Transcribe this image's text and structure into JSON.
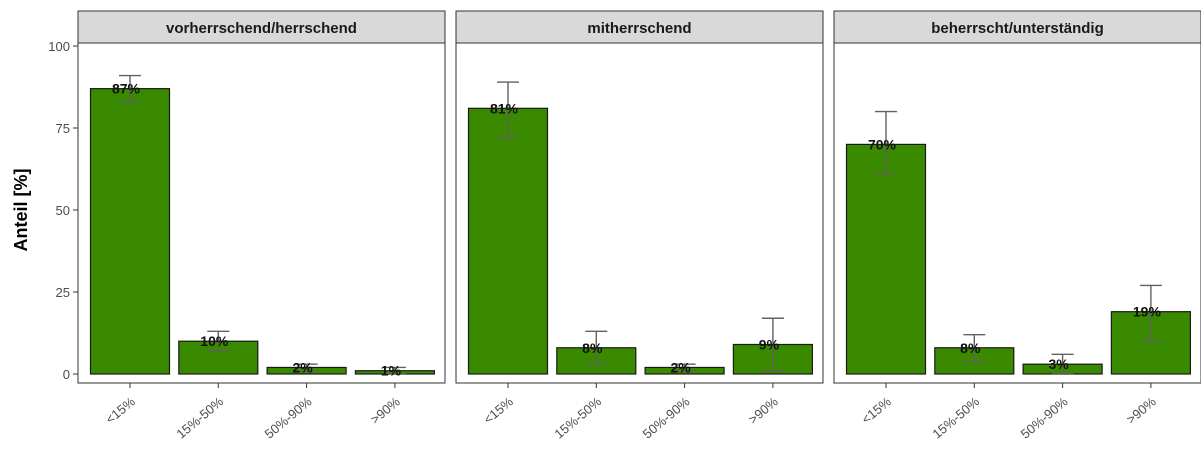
{
  "chart_data": {
    "type": "bar",
    "ylabel": "Anteil [%]",
    "xlabel": "",
    "ylim": [
      0,
      100
    ],
    "yticks": [
      0,
      25,
      50,
      75,
      100
    ],
    "grid": false,
    "bar_color": "#3a8a00",
    "errorbar_color": "#606060",
    "categories": [
      "<15%",
      "15%-50%",
      "50%-90%",
      ">90%"
    ],
    "panels": [
      {
        "title": "vorherrschend/herrschend",
        "values": [
          87,
          10,
          2,
          1
        ],
        "labels": [
          "87%",
          "10%",
          "2%",
          "1%"
        ],
        "err_low": [
          83,
          7,
          1,
          0
        ],
        "err_high": [
          91,
          13,
          3,
          2
        ]
      },
      {
        "title": "mitherrschend",
        "values": [
          81,
          8,
          2,
          9
        ],
        "labels": [
          "81%",
          "8%",
          "2%",
          "9%"
        ],
        "err_low": [
          72,
          3,
          1,
          1
        ],
        "err_high": [
          89,
          13,
          3,
          17
        ]
      },
      {
        "title": "beherrscht/unterständig",
        "values": [
          70,
          8,
          3,
          19
        ],
        "labels": [
          "70%",
          "8%",
          "3%",
          "19%"
        ],
        "err_low": [
          61,
          4,
          0,
          10
        ],
        "err_high": [
          80,
          12,
          6,
          27
        ]
      }
    ]
  }
}
